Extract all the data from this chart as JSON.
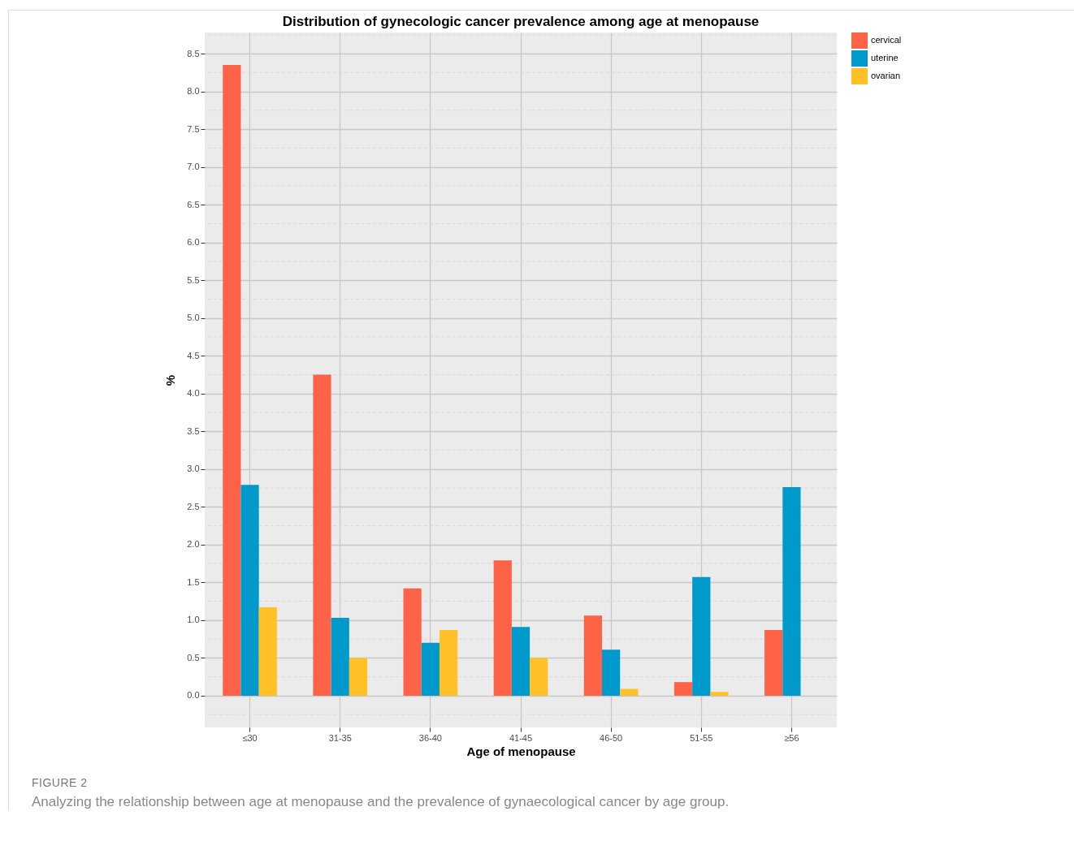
{
  "chart_data": {
    "type": "bar",
    "title": "Distribution of gynecologic cancer prevalence among age at menopause",
    "xlabel": "Age of menopause",
    "ylabel": "%",
    "categories": [
      "≤30",
      "31-35",
      "36-40",
      "41-45",
      "46-50",
      "51-55",
      "≥56"
    ],
    "series": [
      {
        "name": "cervical",
        "color": "#ff6347",
        "values": [
          8.35,
          4.25,
          1.42,
          1.79,
          1.06,
          0.18,
          0.87
        ]
      },
      {
        "name": "uterine",
        "color": "#0099cc",
        "values": [
          2.79,
          1.03,
          0.7,
          0.91,
          0.61,
          1.57,
          2.76
        ]
      },
      {
        "name": "ovarian",
        "color": "#ffc125",
        "values": [
          1.17,
          0.5,
          0.87,
          0.5,
          0.09,
          0.05,
          null
        ]
      }
    ],
    "ylim": [
      -0.42,
      8.78
    ],
    "yticks": [
      {
        "value": 0,
        "label": "0.0"
      },
      0.5,
      {
        "value": 1,
        "label": "1.0"
      },
      1.5,
      {
        "value": 2,
        "label": "2.0"
      },
      2.5,
      {
        "value": 3,
        "label": "3.0"
      },
      3.5,
      {
        "value": 4,
        "label": "4.0"
      },
      4.5,
      {
        "value": 5,
        "label": "5.0"
      },
      5.5,
      {
        "value": 6,
        "label": "6.0"
      },
      6.5,
      {
        "value": 7,
        "label": "7.0"
      },
      7.5,
      {
        "value": 8,
        "label": "8.0"
      },
      8.5
    ],
    "grid": true,
    "legend": "right",
    "annotations": [
      "FIGURE 2",
      "Analyzing the relationship between age at menopause and the prevalence of gynaecological cancer by age group."
    ]
  }
}
